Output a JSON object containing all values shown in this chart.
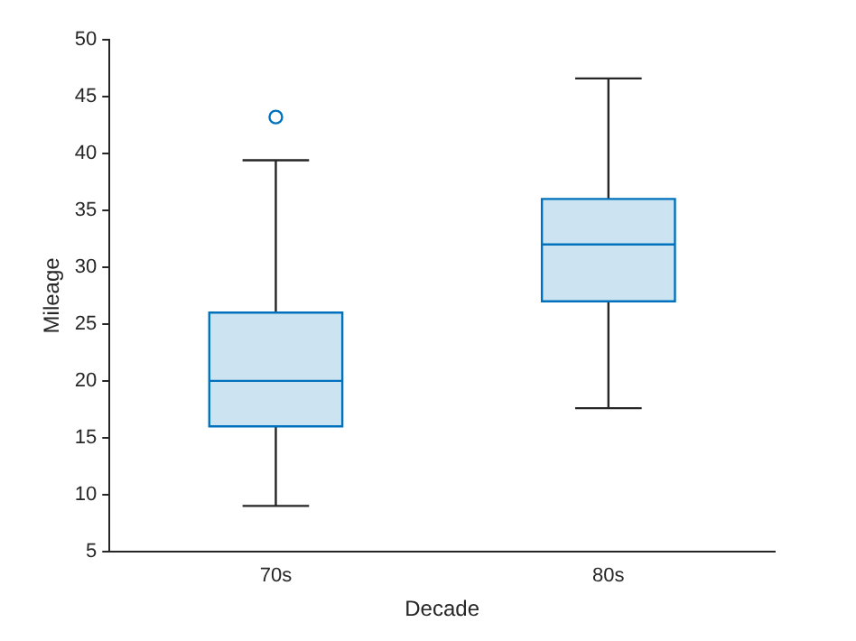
{
  "chart_data": {
    "type": "box",
    "xlabel": "Decade",
    "ylabel": "Mileage",
    "categories": [
      "70s",
      "80s"
    ],
    "color": "#0072bd",
    "boxes": [
      {
        "low": 9,
        "q1": 16,
        "median": 20,
        "q3": 26,
        "high": 39.4,
        "outliers": [
          43.2
        ]
      },
      {
        "low": 17.6,
        "q1": 27,
        "median": 32,
        "q3": 36,
        "high": 46.6
      }
    ],
    "ylim": [
      5,
      50
    ],
    "yticks": [
      5,
      10,
      15,
      20,
      25,
      30,
      35,
      40,
      45,
      50
    ],
    "grid": false,
    "legend": false,
    "marker": "circle"
  }
}
